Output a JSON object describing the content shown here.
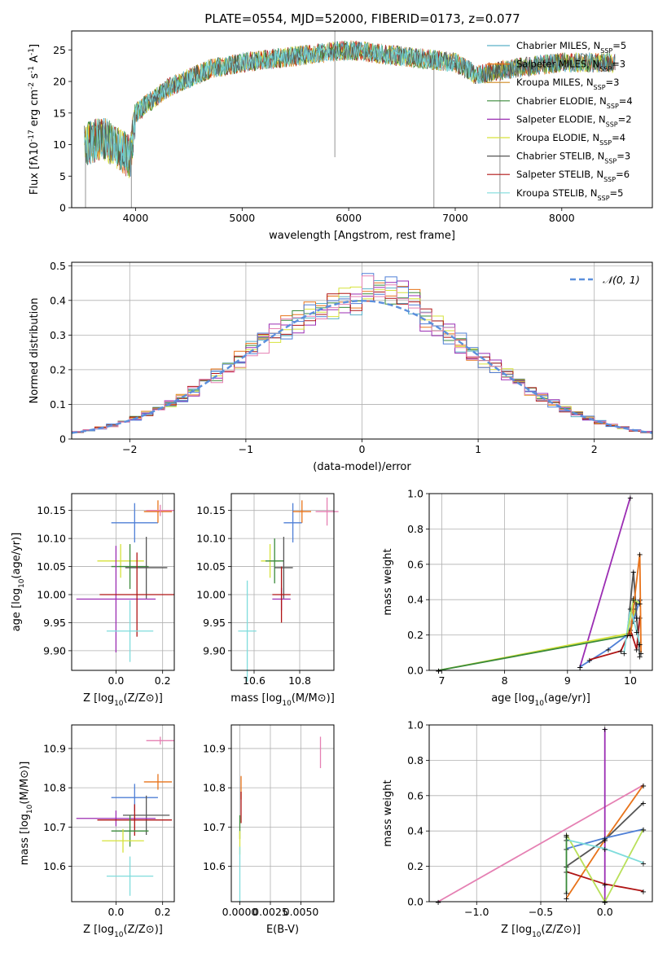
{
  "title": "PLATE=0554, MJD=52000, FIBERID=0173, z=0.077",
  "colors": {
    "Chabrier MILES": "#5ab0c8",
    "Salpeter MILES": "#e8731a",
    "Kroupa MILES": "#d08a20",
    "Chabrier ELODIE": "#3a8a3a",
    "Salpeter ELODIE": "#9b2db3",
    "Kroupa ELODIE": "#d6e23a",
    "Chabrier STELIB": "#555555",
    "Salpeter STELIB": "#b01515",
    "Kroupa STELIB": "#7fdcdc",
    "blue": "#4f7fd6",
    "lime": "#b9e05a",
    "pink": "#e580b3",
    "gauss": "#5b8fdc"
  },
  "chart_data": [
    {
      "id": "spectrum",
      "type": "line",
      "xlabel": "wavelength [Angstrom, rest frame]",
      "ylabel": "Flux [f$_\\lambda$10$^{-17}$ erg cm$^{-2}$ s$^{-1}$ A$^{-1}$]",
      "ylabel_parts": {
        "a": "Flux [f",
        "b": "λ",
        "c": "10",
        "d": "−17",
        "e": " erg cm",
        "f": "−2",
        "g": " s",
        "h": "−1",
        "i": " A",
        "j": "−1",
        "k": "]"
      },
      "xlim": [
        3400,
        8850
      ],
      "ylim": [
        0,
        28
      ],
      "xticks": [
        4000,
        5000,
        6000,
        7000,
        8000
      ],
      "yticks": [
        0,
        5,
        10,
        15,
        20,
        25
      ],
      "continuum": {
        "x": [
          3520,
          3700,
          3950,
          4000,
          4300,
          4700,
          5000,
          5500,
          6000,
          6500,
          7000,
          7200,
          7500,
          8000,
          8500
        ],
        "y": [
          10,
          11,
          8,
          15,
          19,
          22,
          23,
          24,
          25,
          24,
          23,
          21,
          22,
          23,
          23
        ]
      },
      "legend": [
        {
          "label": "Chabrier MILES",
          "nssp": "5"
        },
        {
          "label": "Salpeter MILES",
          "nssp": "3"
        },
        {
          "label": "Kroupa MILES",
          "nssp": "3"
        },
        {
          "label": "Chabrier ELODIE",
          "nssp": "4"
        },
        {
          "label": "Salpeter ELODIE",
          "nssp": "2"
        },
        {
          "label": "Kroupa ELODIE",
          "nssp": "4"
        },
        {
          "label": "Chabrier STELIB",
          "nssp": "3"
        },
        {
          "label": "Salpeter STELIB",
          "nssp": "6"
        },
        {
          "label": "Kroupa STELIB",
          "nssp": "5"
        }
      ],
      "nssp_prefix": "N",
      "nssp_sub": "SSP",
      "legend_position": "top-right"
    },
    {
      "id": "residuals",
      "type": "bar",
      "xlabel": "(data-model)/error",
      "ylabel": "Normed distribution",
      "xlim": [
        -2.5,
        2.5
      ],
      "ylim": [
        0,
        0.51
      ],
      "xticks": [
        -2,
        -1,
        0,
        1,
        2
      ],
      "yticks": [
        0.0,
        0.1,
        0.2,
        0.3,
        0.4,
        0.5
      ],
      "grid": true,
      "gauss_label": "𝒩(0, 1)",
      "legend_position": "top-right",
      "bin_width": 0.1,
      "series": [
        {
          "name": "Chabrier MILES",
          "jitter": 1
        },
        {
          "name": "Salpeter MILES",
          "jitter": 2
        },
        {
          "name": "Chabrier ELODIE",
          "jitter": 3
        },
        {
          "name": "Salpeter ELODIE",
          "jitter": 4
        },
        {
          "name": "Kroupa ELODIE",
          "jitter": 5
        },
        {
          "name": "Salpeter STELIB",
          "jitter": 6
        },
        {
          "name": "blue",
          "jitter": 7
        },
        {
          "name": "pink",
          "jitter": 8
        }
      ]
    },
    {
      "id": "age-z",
      "type": "scatter",
      "xlabel": "Z [log$_{10}$($Z/Z_\\odot$)]",
      "ylabel": "age  [log$_{10}$($age/yr$)]",
      "xlim": [
        -0.19,
        0.25
      ],
      "ylim": [
        9.865,
        10.18
      ],
      "xticks": [
        "0.0",
        "0.2"
      ],
      "yticks": [
        "9.90",
        "9.95",
        "10.00",
        "10.05",
        "10.10",
        "10.15"
      ],
      "points": [
        {
          "c": "blue",
          "x": 0.08,
          "y": 10.128,
          "xe": 0.1,
          "ye": 0.035
        },
        {
          "c": "Salpeter MILES",
          "x": 0.18,
          "y": 10.148,
          "xe": 0.06,
          "ye": 0.02
        },
        {
          "c": "Kroupa ELODIE",
          "x": 0.02,
          "y": 10.06,
          "xe": 0.1,
          "ye": 0.03
        },
        {
          "c": "Chabrier ELODIE",
          "x": 0.06,
          "y": 10.05,
          "xe": 0.08,
          "ye": 0.04
        },
        {
          "c": "Chabrier STELIB",
          "x": 0.13,
          "y": 10.048,
          "xe": 0.09,
          "ye": 0.055
        },
        {
          "c": "Salpeter ELODIE",
          "x": 0.0,
          "y": 9.992,
          "xe": 0.17,
          "ye": 0.095
        },
        {
          "c": "Salpeter STELIB",
          "x": 0.09,
          "y": 10.0,
          "xe": 0.16,
          "ye": 0.075
        },
        {
          "c": "Kroupa STELIB",
          "x": 0.06,
          "y": 9.935,
          "xe": 0.1,
          "ye": 0.055
        },
        {
          "c": "pink",
          "x": 0.19,
          "y": 10.15,
          "xe": 0.06,
          "ye": 0.01
        }
      ]
    },
    {
      "id": "age-mass",
      "type": "scatter",
      "xlabel": "mass [log$_{10}$($M/M_\\odot$)]",
      "ylabel": "",
      "xlim": [
        10.5,
        10.95
      ],
      "ylim": [
        9.865,
        10.18
      ],
      "xticks": [
        "10.6",
        "10.8"
      ],
      "yticks": [
        "9.90",
        "9.95",
        "10.00",
        "10.05",
        "10.10",
        "10.15"
      ],
      "points": [
        {
          "c": "blue",
          "x": 10.77,
          "y": 10.128,
          "xe": 0.04,
          "ye": 0.035
        },
        {
          "c": "Salpeter MILES",
          "x": 10.81,
          "y": 10.148,
          "xe": 0.04,
          "ye": 0.02
        },
        {
          "c": "Kroupa ELODIE",
          "x": 10.67,
          "y": 10.06,
          "xe": 0.04,
          "ye": 0.03
        },
        {
          "c": "Chabrier ELODIE",
          "x": 10.69,
          "y": 10.06,
          "xe": 0.04,
          "ye": 0.04
        },
        {
          "c": "Chabrier STELIB",
          "x": 10.73,
          "y": 10.048,
          "xe": 0.04,
          "ye": 0.055
        },
        {
          "c": "Salpeter ELODIE",
          "x": 10.72,
          "y": 9.992,
          "xe": 0.04,
          "ye": 0.02
        },
        {
          "c": "Salpeter STELIB",
          "x": 10.72,
          "y": 10.0,
          "xe": 0.04,
          "ye": 0.05
        },
        {
          "c": "Kroupa STELIB",
          "x": 10.57,
          "y": 9.935,
          "xe": 0.04,
          "ye": 0.09
        },
        {
          "c": "pink",
          "x": 10.92,
          "y": 10.148,
          "xe": 0.05,
          "ye": 0.025
        }
      ]
    },
    {
      "id": "weight-age",
      "type": "line",
      "xlabel": "age  [log$_{10}$($age/yr$)]",
      "ylabel": "mass weight",
      "xlim": [
        6.8,
        10.35
      ],
      "ylim": [
        0,
        1
      ],
      "xticks": [
        "7",
        "8",
        "9",
        "10"
      ],
      "yticks": [
        "0.0",
        "0.2",
        "0.4",
        "0.6",
        "0.8",
        "1.0"
      ],
      "series": [
        {
          "c": "Salpeter ELODIE",
          "x": [
            9.2,
            10.0
          ],
          "y": [
            0.02,
            0.98
          ]
        },
        {
          "c": "Kroupa ELODIE",
          "x": [
            6.95,
            10.0,
            10.1,
            10.05
          ],
          "y": [
            0.0,
            0.21,
            0.38,
            0.41
          ]
        },
        {
          "c": "Chabrier ELODIE",
          "x": [
            6.95,
            10.0,
            10.05
          ],
          "y": [
            0.0,
            0.2,
            0.35
          ]
        },
        {
          "c": "blue",
          "x": [
            9.2,
            9.65,
            9.95,
            10.05,
            10.15
          ],
          "y": [
            0.02,
            0.12,
            0.2,
            0.28,
            0.4
          ]
        },
        {
          "c": "Salpeter STELIB",
          "x": [
            9.35,
            9.85,
            10.0,
            10.1,
            10.15
          ],
          "y": [
            0.06,
            0.11,
            0.23,
            0.12,
            0.3
          ]
        },
        {
          "c": "Chabrier STELIB",
          "x": [
            9.95,
            10.05,
            10.1,
            10.15
          ],
          "y": [
            0.2,
            0.56,
            0.3,
            0.08
          ]
        },
        {
          "c": "Salpeter MILES",
          "x": [
            10.0,
            10.15,
            10.17
          ],
          "y": [
            0.2,
            0.66,
            0.1
          ]
        },
        {
          "c": "Kroupa STELIB",
          "x": [
            9.9,
            10.0,
            10.1,
            10.15
          ],
          "y": [
            0.1,
            0.35,
            0.22,
            0.15
          ]
        },
        {
          "c": "lime",
          "x": [
            9.95,
            10.05,
            10.15
          ],
          "y": [
            0.2,
            0.4,
            0.38
          ]
        }
      ]
    },
    {
      "id": "mass-z",
      "type": "scatter",
      "xlabel": "Z [log$_{10}$($Z/Z_\\odot$)]",
      "ylabel": "mass [log$_{10}$($M/M_\\odot$)]",
      "xlim": [
        -0.19,
        0.25
      ],
      "ylim": [
        10.51,
        10.96
      ],
      "xticks": [
        "0.0",
        "0.2"
      ],
      "yticks": [
        "10.6",
        "10.7",
        "10.8",
        "10.9"
      ],
      "points": [
        {
          "c": "pink",
          "x": 0.19,
          "y": 10.92,
          "xe": 0.06,
          "ye": 0.01
        },
        {
          "c": "Salpeter MILES",
          "x": 0.18,
          "y": 10.815,
          "xe": 0.06,
          "ye": 0.02
        },
        {
          "c": "blue",
          "x": 0.08,
          "y": 10.775,
          "xe": 0.1,
          "ye": 0.035
        },
        {
          "c": "Chabrier STELIB",
          "x": 0.13,
          "y": 10.73,
          "xe": 0.1,
          "ye": 0.05
        },
        {
          "c": "Salpeter ELODIE",
          "x": 0.0,
          "y": 10.722,
          "xe": 0.17,
          "ye": 0.02
        },
        {
          "c": "Salpeter STELIB",
          "x": 0.08,
          "y": 10.718,
          "xe": 0.16,
          "ye": 0.04
        },
        {
          "c": "Chabrier ELODIE",
          "x": 0.06,
          "y": 10.69,
          "xe": 0.08,
          "ye": 0.04
        },
        {
          "c": "Kroupa ELODIE",
          "x": 0.03,
          "y": 10.665,
          "xe": 0.09,
          "ye": 0.03
        },
        {
          "c": "Kroupa STELIB",
          "x": 0.06,
          "y": 10.575,
          "xe": 0.1,
          "ye": 0.05
        }
      ]
    },
    {
      "id": "mass-ebv",
      "type": "scatter",
      "xlabel": "E(B-V)",
      "ylabel": "",
      "xlim": [
        -0.0007,
        0.0077
      ],
      "ylim": [
        10.51,
        10.96
      ],
      "xticks": [
        "0.0000",
        "0.0025",
        "0.0050"
      ],
      "xtick_values": [
        0,
        0.0025,
        0.005
      ],
      "yticks": [
        "10.6",
        "10.7",
        "10.8",
        "10.9"
      ],
      "points": [
        {
          "c": "pink",
          "x": 0.0066,
          "y": 10.89,
          "xe": 0.0,
          "ye": 0.04
        },
        {
          "c": "Salpeter MILES",
          "x": 0.0001,
          "y": 10.8,
          "xe": 0.0,
          "ye": 0.03
        },
        {
          "c": "Salpeter STELIB",
          "x": 0.0001,
          "y": 10.75,
          "xe": 0.0,
          "ye": 0.04
        },
        {
          "c": "Chabrier ELODIE",
          "x": 0.0,
          "y": 10.7,
          "xe": 0.0,
          "ye": 0.03
        },
        {
          "c": "Kroupa ELODIE",
          "x": 0.0,
          "y": 10.66,
          "xe": 0.0,
          "ye": 0.03
        },
        {
          "c": "Kroupa STELIB",
          "x": 0.0,
          "y": 10.58,
          "xe": 0.0,
          "ye": 0.07
        }
      ]
    },
    {
      "id": "weight-z",
      "type": "line",
      "xlabel": "Z [log$_{10}$($Z/Z_\\odot$)]",
      "ylabel": "mass weight",
      "xlim": [
        -1.37,
        0.37
      ],
      "ylim": [
        0,
        1
      ],
      "xticks": [
        "−1.0",
        "−0.5",
        "0.0"
      ],
      "xtick_values": [
        -1.0,
        -0.5,
        0.0
      ],
      "yticks": [
        "0.0",
        "0.2",
        "0.4",
        "0.6",
        "0.8",
        "1.0"
      ],
      "series": [
        {
          "c": "pink",
          "x": [
            -1.3,
            0.3
          ],
          "y": [
            0.0,
            0.66
          ]
        },
        {
          "c": "Salpeter ELODIE",
          "x": [
            0.0,
            0.0
          ],
          "y": [
            0.0,
            0.98
          ]
        },
        {
          "c": "Salpeter MILES",
          "x": [
            -0.3,
            0.0,
            0.3
          ],
          "y": [
            0.02,
            0.35,
            0.66
          ]
        },
        {
          "c": "Chabrier STELIB",
          "x": [
            -0.3,
            0.0,
            0.3
          ],
          "y": [
            0.2,
            0.35,
            0.56
          ]
        },
        {
          "c": "blue",
          "x": [
            -0.3,
            0.0,
            0.3
          ],
          "y": [
            0.3,
            0.36,
            0.41
          ]
        },
        {
          "c": "Salpeter STELIB",
          "x": [
            -0.3,
            0.0,
            0.3
          ],
          "y": [
            0.17,
            0.1,
            0.06
          ]
        },
        {
          "c": "lime",
          "x": [
            -0.3,
            0.0,
            0.3
          ],
          "y": [
            0.38,
            0.0,
            0.41
          ]
        },
        {
          "c": "Kroupa STELIB",
          "x": [
            -0.3,
            0.0,
            0.3
          ],
          "y": [
            0.35,
            0.3,
            0.22
          ]
        },
        {
          "c": "Chabrier ELODIE",
          "x": [
            -0.3,
            -0.3
          ],
          "y": [
            0.05,
            0.37
          ]
        }
      ]
    }
  ]
}
